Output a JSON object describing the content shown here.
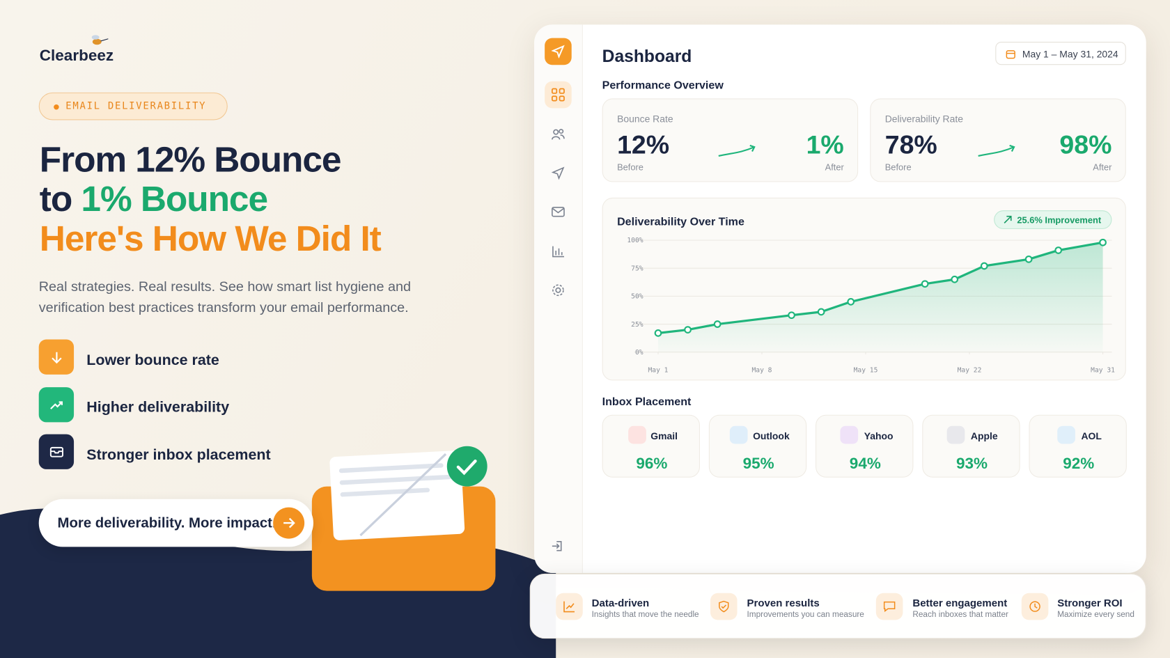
{
  "brand": "Clearbeez",
  "hero": {
    "tag": "EMAIL DELIVERABILITY",
    "headline": {
      "line1": "From 12% Bounce",
      "line2_prefix": "to",
      "line2_highlight": "1% Bounce",
      "line3": "Here's How We Did It"
    },
    "subtitle": "Real strategies. Real results. See how smart list hygiene and verification best practices transform your email performance.",
    "features": [
      "Lower bounce rate",
      "Higher deliverability",
      "Stronger inbox placement"
    ],
    "cta": "More deliverability. More impact."
  },
  "dashboard": {
    "title": "Dashboard",
    "date_range": "May 1 – May 31, 2024",
    "section_performance": "Performance Overview",
    "metrics": [
      {
        "label": "Bounce Rate",
        "before": "12%",
        "before_label": "Before",
        "after": "1%",
        "after_label": "After"
      },
      {
        "label": "Deliverability Rate",
        "before": "78%",
        "before_label": "Before",
        "after": "98%",
        "after_label": "After"
      }
    ],
    "section_inbox": "Inbox Placement",
    "inbox": [
      {
        "provider": "Gmail",
        "value": "96%"
      },
      {
        "provider": "Outlook",
        "value": "95%"
      },
      {
        "provider": "Yahoo",
        "value": "94%"
      },
      {
        "provider": "Apple",
        "value": "93%"
      },
      {
        "provider": "AOL",
        "value": "92%"
      }
    ]
  },
  "chart_data": {
    "type": "line",
    "title": "Deliverability Over Time",
    "badge": "25.6% Improvement",
    "x": [
      1,
      3,
      5,
      10,
      12,
      14,
      19,
      21,
      23,
      26,
      28,
      31
    ],
    "values": [
      17,
      20,
      25,
      33,
      36,
      45,
      61,
      65,
      77,
      83,
      91,
      98
    ],
    "color": "#1fb57c",
    "xlim": [
      1,
      31
    ],
    "xticks": [
      {
        "value": 1,
        "label": "May 1"
      },
      {
        "value": 8,
        "label": "May 8"
      },
      {
        "value": 15,
        "label": "May 15"
      },
      {
        "value": 22,
        "label": "May 22"
      },
      {
        "value": 31,
        "label": "May 31"
      }
    ],
    "ylim": [
      0,
      100
    ],
    "yticks": [
      {
        "value": 0,
        "label": "0%"
      },
      {
        "value": 25,
        "label": "25%"
      },
      {
        "value": 50,
        "label": "50%"
      },
      {
        "value": 75,
        "label": "75%"
      },
      {
        "value": 100,
        "label": "100%"
      }
    ],
    "grid": true
  },
  "benefits": [
    {
      "title": "Data-driven",
      "subtitle": "Insights that move the needle"
    },
    {
      "title": "Proven results",
      "subtitle": "Improvements you can measure"
    },
    {
      "title": "Better engagement",
      "subtitle": "Reach inboxes that matter"
    },
    {
      "title": "Stronger ROI",
      "subtitle": "Maximize every send"
    }
  ]
}
